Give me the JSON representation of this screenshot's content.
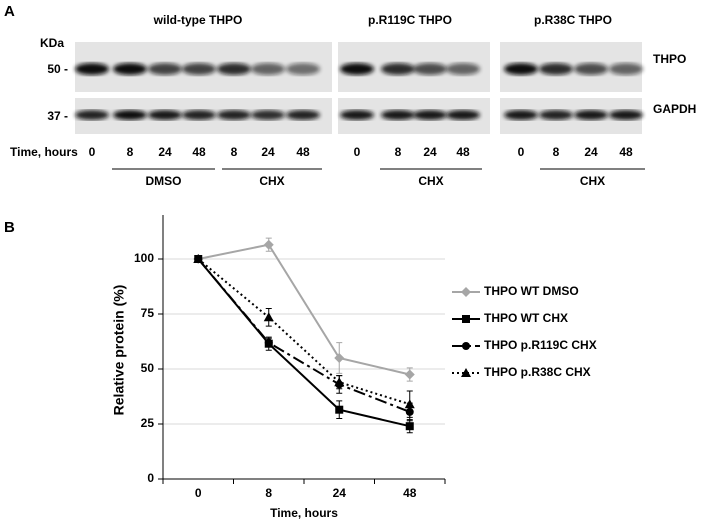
{
  "panel_a": {
    "label": "A",
    "unit": "KDa",
    "time_label": "Time, hours",
    "markers": [
      "50 -",
      "37 -"
    ],
    "proteins": [
      "THPO",
      "GAPDH"
    ],
    "groups": [
      {
        "title": "wild-type THPO",
        "lanes": [
          "0",
          "8",
          "24",
          "48",
          "8",
          "24",
          "48"
        ],
        "treatments": [
          "DMSO",
          "CHX"
        ]
      },
      {
        "title": "p.R119C THPO",
        "lanes": [
          "0",
          "8",
          "24",
          "48"
        ],
        "treatments": [
          "CHX"
        ]
      },
      {
        "title": "p.R38C THPO",
        "lanes": [
          "0",
          "8",
          "24",
          "48"
        ],
        "treatments": [
          "CHX"
        ]
      }
    ]
  },
  "chart_data": {
    "type": "line",
    "panel_label": "B",
    "x_label": "Time, hours",
    "y_label": "Relative protein (%)",
    "categories": [
      "0",
      "8",
      "24",
      "48"
    ],
    "ylim": [
      0,
      120
    ],
    "yticks": [
      0,
      25,
      50,
      75,
      100
    ],
    "grid": true,
    "legend": "right",
    "series": [
      {
        "name": "THPO WT DMSO",
        "color": "#a6a6a6",
        "dash": "solid",
        "marker": "diamond",
        "values": [
          100,
          106.5,
          55,
          47.5
        ],
        "errors": [
          0,
          3,
          7,
          3
        ]
      },
      {
        "name": "THPO WT CHX",
        "color": "#000000",
        "dash": "solid",
        "marker": "square",
        "values": [
          100,
          61.5,
          31.5,
          24
        ],
        "errors": [
          0,
          3,
          4,
          3
        ]
      },
      {
        "name": "THPO p.R119C CHX",
        "color": "#000000",
        "dash": "dashdot",
        "marker": "circle",
        "values": [
          100,
          62,
          43,
          30.5
        ],
        "errors": [
          0,
          2,
          4,
          4
        ]
      },
      {
        "name": "THPO p.R38C CHX",
        "color": "#000000",
        "dash": "dot",
        "marker": "triangle",
        "values": [
          100,
          73.5,
          44,
          34
        ],
        "errors": [
          0,
          4,
          3,
          6
        ]
      }
    ]
  }
}
